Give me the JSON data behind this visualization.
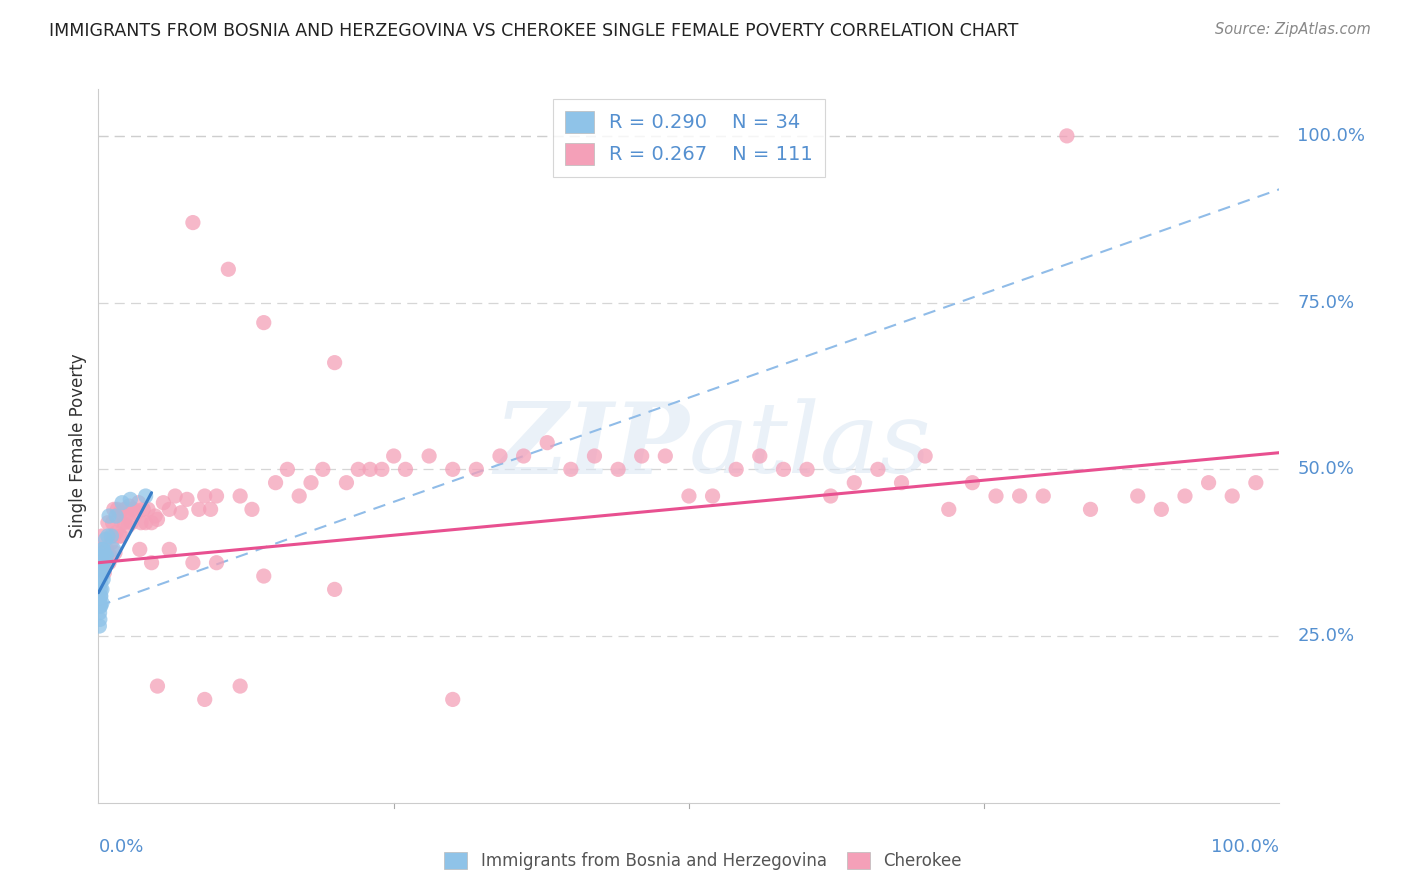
{
  "title": "IMMIGRANTS FROM BOSNIA AND HERZEGOVINA VS CHEROKEE SINGLE FEMALE POVERTY CORRELATION CHART",
  "source": "Source: ZipAtlas.com",
  "ylabel": "Single Female Poverty",
  "legend_label_blue": "Immigrants from Bosnia and Herzegovina",
  "legend_label_pink": "Cherokee",
  "legend_blue_text": "R = 0.290    N = 34",
  "legend_pink_text": "R = 0.267    N = 111",
  "ytick_labels": [
    "25.0%",
    "50.0%",
    "75.0%",
    "100.0%"
  ],
  "ytick_values": [
    0.25,
    0.5,
    0.75,
    1.0
  ],
  "watermark": "ZIPatlas",
  "blue_color": "#8fc3e8",
  "pink_color": "#f4a0b8",
  "blue_line_color": "#3a7ec8",
  "pink_line_color": "#e85090",
  "dashed_line_color": "#90bce8",
  "title_color": "#222222",
  "axis_label_color": "#5590d0",
  "background_color": "#ffffff",
  "grid_color": "#cccccc",
  "blue_scatter_x": [
    0.0008,
    0.001,
    0.0012,
    0.0014,
    0.0015,
    0.0016,
    0.0018,
    0.002,
    0.002,
    0.002,
    0.0022,
    0.0024,
    0.0025,
    0.0026,
    0.003,
    0.003,
    0.0032,
    0.0035,
    0.004,
    0.004,
    0.0042,
    0.005,
    0.005,
    0.006,
    0.006,
    0.007,
    0.008,
    0.009,
    0.011,
    0.013,
    0.015,
    0.02,
    0.027,
    0.04
  ],
  "blue_scatter_y": [
    0.265,
    0.285,
    0.275,
    0.3,
    0.295,
    0.32,
    0.31,
    0.295,
    0.31,
    0.33,
    0.35,
    0.37,
    0.34,
    0.36,
    0.3,
    0.32,
    0.36,
    0.38,
    0.335,
    0.36,
    0.38,
    0.375,
    0.35,
    0.365,
    0.395,
    0.37,
    0.4,
    0.43,
    0.4,
    0.38,
    0.43,
    0.45,
    0.455,
    0.46
  ],
  "pink_scatter_x": [
    0.001,
    0.002,
    0.003,
    0.003,
    0.004,
    0.005,
    0.006,
    0.007,
    0.008,
    0.009,
    0.01,
    0.011,
    0.012,
    0.013,
    0.014,
    0.015,
    0.016,
    0.018,
    0.019,
    0.02,
    0.022,
    0.024,
    0.025,
    0.026,
    0.028,
    0.03,
    0.032,
    0.034,
    0.036,
    0.038,
    0.04,
    0.042,
    0.045,
    0.048,
    0.05,
    0.055,
    0.06,
    0.065,
    0.07,
    0.075,
    0.08,
    0.085,
    0.09,
    0.095,
    0.1,
    0.11,
    0.12,
    0.13,
    0.14,
    0.15,
    0.16,
    0.17,
    0.18,
    0.19,
    0.2,
    0.21,
    0.22,
    0.23,
    0.24,
    0.25,
    0.26,
    0.28,
    0.3,
    0.32,
    0.34,
    0.36,
    0.38,
    0.4,
    0.42,
    0.44,
    0.46,
    0.48,
    0.5,
    0.52,
    0.54,
    0.56,
    0.58,
    0.6,
    0.62,
    0.64,
    0.66,
    0.68,
    0.7,
    0.72,
    0.74,
    0.76,
    0.78,
    0.8,
    0.84,
    0.88,
    0.9,
    0.92,
    0.94,
    0.96,
    0.98,
    0.013,
    0.018,
    0.022,
    0.028,
    0.035,
    0.045,
    0.06,
    0.08,
    0.1,
    0.14,
    0.2,
    0.82,
    0.05,
    0.12,
    0.09,
    0.3
  ],
  "pink_scatter_y": [
    0.36,
    0.38,
    0.4,
    0.375,
    0.355,
    0.345,
    0.37,
    0.38,
    0.42,
    0.36,
    0.37,
    0.39,
    0.42,
    0.4,
    0.375,
    0.405,
    0.44,
    0.435,
    0.4,
    0.42,
    0.44,
    0.43,
    0.415,
    0.445,
    0.42,
    0.44,
    0.435,
    0.45,
    0.42,
    0.44,
    0.42,
    0.44,
    0.42,
    0.43,
    0.425,
    0.45,
    0.44,
    0.46,
    0.435,
    0.455,
    0.87,
    0.44,
    0.46,
    0.44,
    0.46,
    0.8,
    0.46,
    0.44,
    0.72,
    0.48,
    0.5,
    0.46,
    0.48,
    0.5,
    0.66,
    0.48,
    0.5,
    0.5,
    0.5,
    0.52,
    0.5,
    0.52,
    0.5,
    0.5,
    0.52,
    0.52,
    0.54,
    0.5,
    0.52,
    0.5,
    0.52,
    0.52,
    0.46,
    0.46,
    0.5,
    0.52,
    0.5,
    0.5,
    0.46,
    0.48,
    0.5,
    0.48,
    0.52,
    0.44,
    0.48,
    0.46,
    0.46,
    0.46,
    0.44,
    0.46,
    0.44,
    0.46,
    0.48,
    0.46,
    0.48,
    0.44,
    0.4,
    0.42,
    0.44,
    0.38,
    0.36,
    0.38,
    0.36,
    0.36,
    0.34,
    0.32,
    1.0,
    0.175,
    0.175,
    0.155,
    0.155
  ]
}
